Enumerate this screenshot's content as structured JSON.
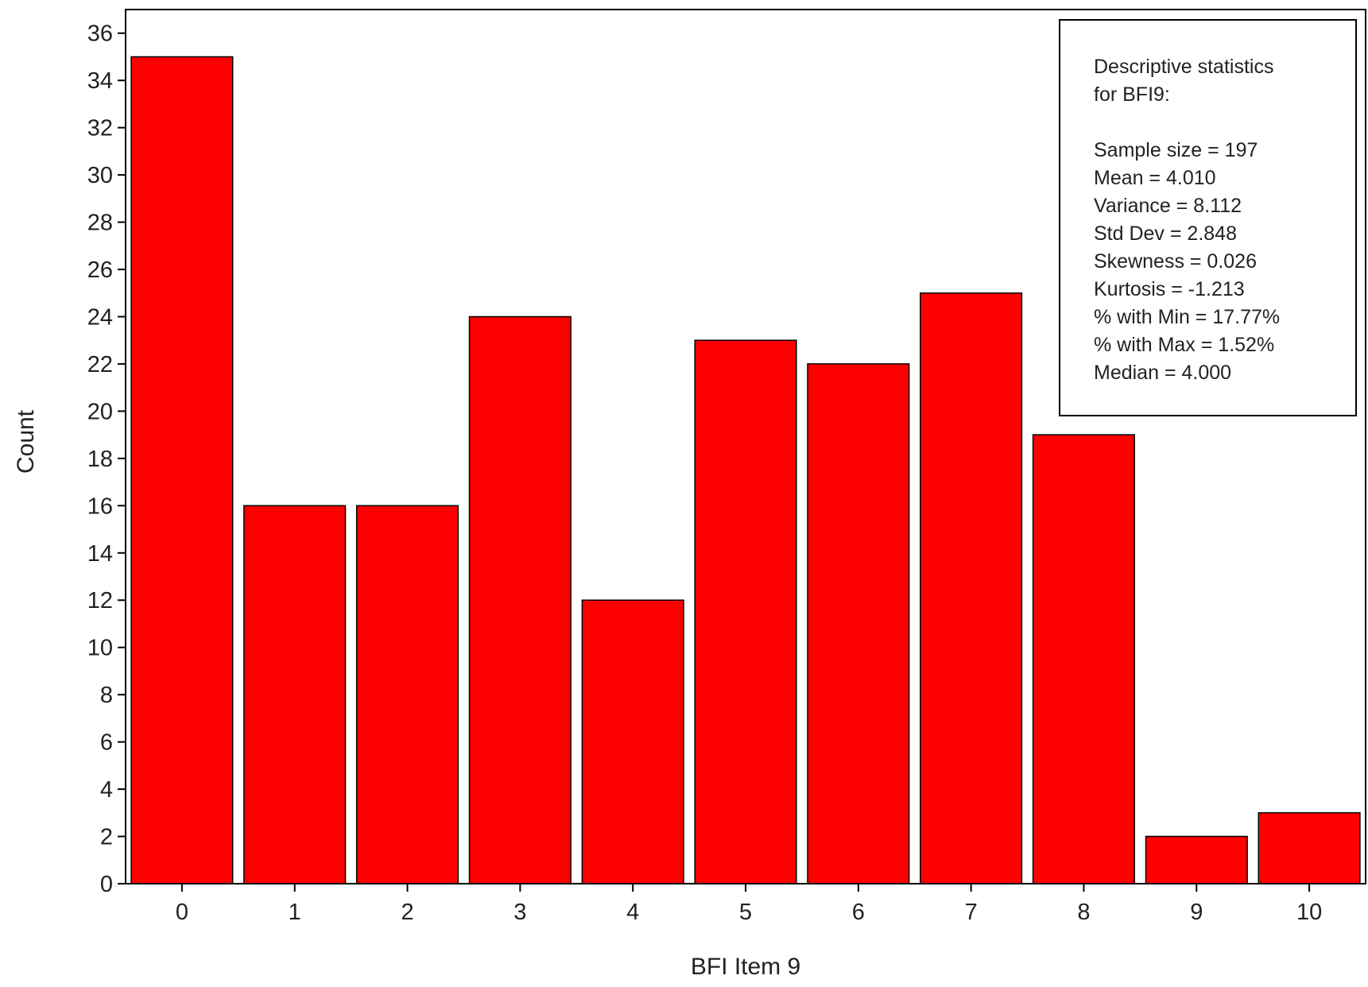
{
  "chart_data": {
    "type": "bar",
    "categories": [
      "0",
      "1",
      "2",
      "3",
      "4",
      "5",
      "6",
      "7",
      "8",
      "9",
      "10"
    ],
    "values": [
      35,
      16,
      16,
      24,
      12,
      23,
      22,
      25,
      19,
      2,
      3
    ],
    "xlabel": "BFI Item 9",
    "ylabel": "Count",
    "ylim": [
      0,
      37
    ],
    "y_ticks": [
      "0",
      "2",
      "4",
      "6",
      "8",
      "10",
      "12",
      "14",
      "16",
      "18",
      "20",
      "22",
      "24",
      "26",
      "28",
      "30",
      "32",
      "34",
      "36"
    ],
    "bar_color": "#ff0000",
    "grid": false,
    "stats_box": {
      "placement": "top-right",
      "lines": [
        "Descriptive statistics",
        "for BFI9:",
        "",
        "Sample size = 197",
        "Mean = 4.010",
        "Variance = 8.112",
        "Std Dev = 2.848",
        "Skewness = 0.026",
        "Kurtosis = -1.213",
        "% with Min = 17.77%",
        "% with Max = 1.52%",
        "Median = 4.000"
      ]
    }
  }
}
